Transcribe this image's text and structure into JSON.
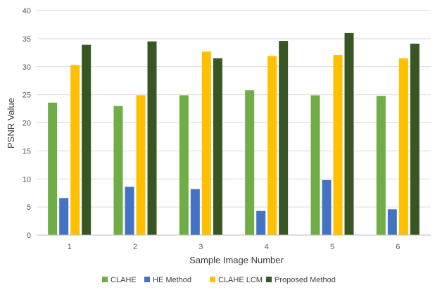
{
  "chart_data": {
    "type": "bar",
    "title": "",
    "xlabel": "Sample Image Number",
    "ylabel": "PSNR Value",
    "categories": [
      "1",
      "2",
      "3",
      "4",
      "5",
      "6"
    ],
    "ylim": [
      0,
      40
    ],
    "yticks": [
      0,
      5,
      10,
      15,
      20,
      25,
      30,
      35,
      40
    ],
    "grid": true,
    "legend_position": "bottom",
    "series": [
      {
        "name": "CLAHE",
        "color": "#70ad47",
        "values": [
          23.6,
          23.0,
          24.9,
          25.8,
          24.9,
          24.8
        ]
      },
      {
        "name": "HE Method",
        "color": "#4472c4",
        "values": [
          6.6,
          8.6,
          8.2,
          4.3,
          9.8,
          4.6
        ]
      },
      {
        "name": "CLAHE LCM",
        "color": "#ffc000",
        "values": [
          30.3,
          24.9,
          32.7,
          31.9,
          32.1,
          31.5
        ]
      },
      {
        "name": "Proposed Method",
        "color": "#375623",
        "values": [
          33.9,
          34.5,
          31.5,
          34.6,
          36.0,
          34.1
        ]
      }
    ]
  }
}
